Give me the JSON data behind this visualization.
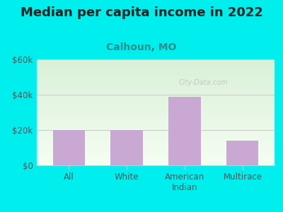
{
  "title": "Median per capita income in 2022",
  "subtitle": "Calhoun, MO",
  "categories": [
    "All",
    "White",
    "American\nIndian",
    "Multirace"
  ],
  "values": [
    20000,
    20000,
    39000,
    14000
  ],
  "bar_color": "#c9a8d4",
  "background_color": "#00EEEE",
  "plot_bg_top": "#daf0d8",
  "plot_bg_bottom": "#f5fef2",
  "title_color": "#222222",
  "subtitle_color": "#2e8b8b",
  "axis_label_color": "#555555",
  "grid_color": "#c8c8c8",
  "ylim": [
    0,
    60000
  ],
  "yticks": [
    0,
    20000,
    40000,
    60000
  ],
  "ytick_labels": [
    "$0",
    "$20k",
    "$40k",
    "$60k"
  ],
  "watermark": "City-Data.com",
  "title_fontsize": 13,
  "subtitle_fontsize": 10,
  "tick_fontsize": 8.5
}
